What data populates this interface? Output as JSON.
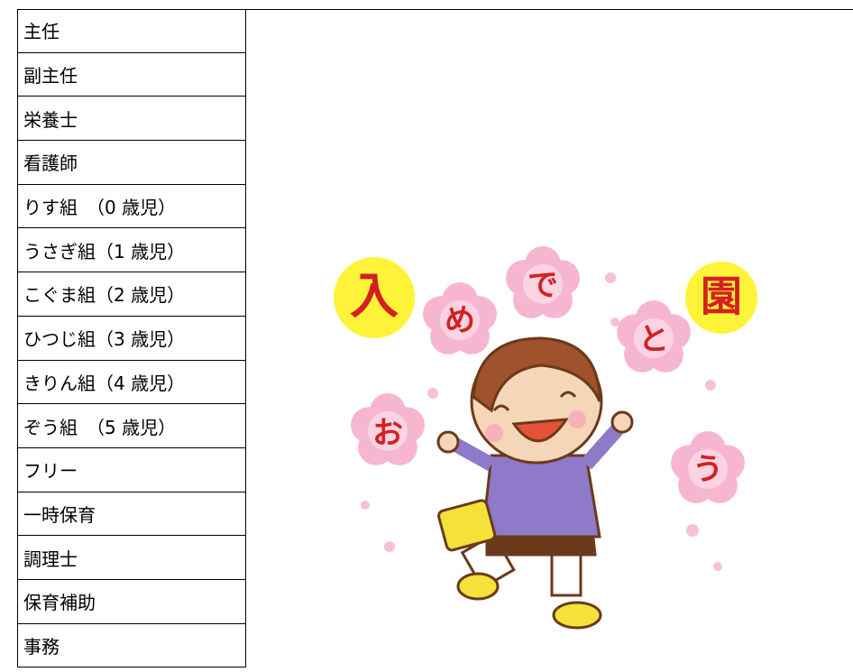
{
  "table": {
    "rows": [
      "主任",
      "副主任",
      "栄養士",
      "看護師",
      "りす組　（0 歳児）",
      "うさぎ組（1 歳児）",
      "こぐま組（2 歳児）",
      "ひつじ組（3 歳児）",
      "きりん組（4 歳児）",
      "ぞう組　（5 歳児）",
      "フリー",
      "一時保育",
      "調理士",
      "保育補助",
      "事務"
    ]
  },
  "illustration": {
    "characters": [
      "入",
      "め",
      "で",
      "と",
      "園",
      "お",
      "う"
    ]
  }
}
